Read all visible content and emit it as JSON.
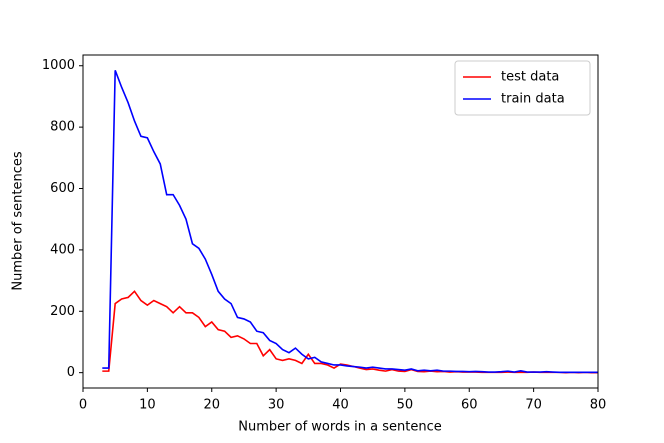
{
  "chart_data": {
    "type": "line",
    "x_label": "Number of words in a sentence",
    "y_label": "Number of sentences",
    "x": [
      3,
      4,
      5,
      6,
      7,
      8,
      9,
      10,
      11,
      12,
      13,
      14,
      15,
      16,
      17,
      18,
      19,
      20,
      21,
      22,
      23,
      24,
      25,
      26,
      27,
      28,
      29,
      30,
      31,
      32,
      33,
      34,
      35,
      36,
      37,
      38,
      39,
      40,
      41,
      42,
      43,
      44,
      45,
      46,
      47,
      48,
      49,
      50,
      51,
      52,
      53,
      54,
      55,
      56,
      57,
      58,
      59,
      60,
      61,
      62,
      63,
      64,
      65,
      66,
      67,
      68,
      69,
      70,
      71,
      72,
      73,
      74,
      75,
      76,
      77,
      78,
      79,
      80
    ],
    "series": [
      {
        "name": "test data",
        "color": "#ff0000",
        "values": [
          5,
          5,
          225,
          240,
          245,
          265,
          235,
          220,
          235,
          225,
          215,
          195,
          215,
          195,
          195,
          180,
          150,
          165,
          140,
          135,
          115,
          120,
          110,
          95,
          95,
          55,
          75,
          45,
          40,
          45,
          40,
          30,
          60,
          30,
          30,
          25,
          15,
          28,
          25,
          20,
          15,
          10,
          12,
          8,
          5,
          10,
          5,
          4,
          10,
          4,
          3,
          5,
          3,
          4,
          2,
          3,
          2,
          2,
          2,
          1,
          1,
          1,
          1,
          2,
          1,
          1,
          1,
          2,
          1,
          1,
          1,
          1,
          0,
          1,
          0,
          1,
          0,
          0
        ]
      },
      {
        "name": "train data",
        "color": "#0000ff",
        "values": [
          15,
          15,
          985,
          930,
          880,
          820,
          770,
          765,
          720,
          680,
          580,
          580,
          545,
          500,
          420,
          405,
          370,
          320,
          265,
          240,
          225,
          180,
          175,
          165,
          135,
          130,
          105,
          95,
          75,
          65,
          80,
          60,
          45,
          50,
          35,
          30,
          25,
          25,
          22,
          20,
          18,
          15,
          18,
          15,
          12,
          12,
          10,
          8,
          12,
          6,
          8,
          6,
          8,
          5,
          5,
          4,
          4,
          3,
          4,
          3,
          2,
          2,
          3,
          5,
          2,
          6,
          2,
          2,
          2,
          3,
          2,
          1,
          1,
          1,
          1,
          1,
          1,
          1
        ]
      }
    ],
    "xlim": [
      0,
      80
    ],
    "xticks": [
      0,
      10,
      20,
      30,
      40,
      50,
      60,
      70,
      80
    ],
    "ylim": [
      -50,
      1035
    ],
    "yticks": [
      0,
      200,
      400,
      600,
      800,
      1000
    ],
    "legend": "upper right"
  }
}
